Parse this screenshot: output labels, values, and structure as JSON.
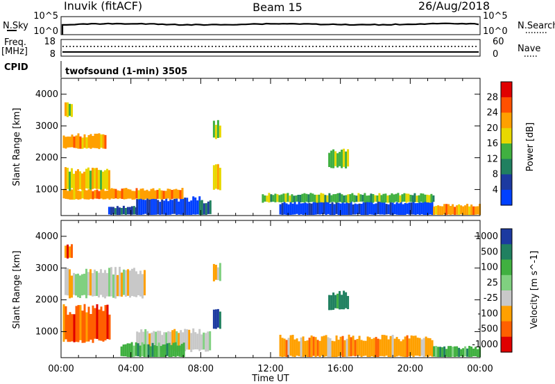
{
  "header": {
    "station": "Inuvik (fitACF)",
    "beam": "Beam 15",
    "date": "26/Aug/2018"
  },
  "top_panels": {
    "nsky_label": "N.Sky",
    "nsky_ticks": [
      "10^5",
      "10^0"
    ],
    "nsearch_label": "N.Search",
    "nsearch_ticks": [
      "10^5",
      "10^0"
    ],
    "freq_label_1": "Freq.",
    "freq_label_2": "[MHz]",
    "freq_ticks": [
      "18",
      "8"
    ],
    "nave_label": "Nave",
    "nave_ticks": [
      "60",
      "0"
    ],
    "cpid_label": "CPID",
    "cpid_text": "twofsound (1-min) 3505"
  },
  "chart_data": [
    {
      "type": "heatmap",
      "name": "power-panel",
      "xlabel": "Time UT",
      "ylabel": "Slant Range [km]",
      "xlim": [
        0,
        24
      ],
      "ylim": [
        180,
        4500
      ],
      "x_ticks": [
        "00:00",
        "04:00",
        "08:00",
        "12:00",
        "16:00",
        "20:00",
        "00:00"
      ],
      "y_ticks": [
        "1000",
        "2000",
        "3000",
        "4000"
      ],
      "colorbar": {
        "label": "Power [dB]",
        "ticks": [
          "28",
          "24",
          "20",
          "16",
          "12",
          "8",
          "4"
        ],
        "colors": [
          "#e00000",
          "#ff5000",
          "#ffa000",
          "#e8d800",
          "#40b040",
          "#208060",
          "#1c3aa0",
          "#0040ff"
        ]
      },
      "regions": [
        {
          "t0": 4.3,
          "t1": 7.9,
          "r0": 200,
          "r1": 700,
          "level": 7
        },
        {
          "t0": 2.7,
          "t1": 4.3,
          "r0": 200,
          "r1": 450,
          "level": 6
        },
        {
          "t0": 7.9,
          "t1": 8.5,
          "r0": 200,
          "r1": 600,
          "level": 5
        },
        {
          "t0": 0.1,
          "t1": 7.0,
          "r0": 700,
          "r1": 1000,
          "level": 2
        },
        {
          "t0": 0.2,
          "t1": 2.8,
          "r0": 1000,
          "r1": 1600,
          "level": 3
        },
        {
          "t0": 0.1,
          "t1": 2.6,
          "r0": 2300,
          "r1": 2700,
          "level": 2
        },
        {
          "t0": 8.7,
          "t1": 9.1,
          "r0": 2600,
          "r1": 3100,
          "level": 4
        },
        {
          "t0": 8.7,
          "t1": 9.1,
          "r0": 1000,
          "r1": 1700,
          "level": 3
        },
        {
          "t0": 12.5,
          "t1": 21.3,
          "r0": 200,
          "r1": 600,
          "level": 7
        },
        {
          "t0": 11.5,
          "t1": 21.3,
          "r0": 600,
          "r1": 850,
          "level": 4
        },
        {
          "t0": 15.3,
          "t1": 16.4,
          "r0": 1700,
          "r1": 2200,
          "level": 4
        },
        {
          "t0": 0.2,
          "t1": 0.6,
          "r0": 3300,
          "r1": 3700,
          "level": 3
        },
        {
          "t0": 21.3,
          "t1": 24.0,
          "r0": 200,
          "r1": 500,
          "level": 2
        }
      ]
    },
    {
      "type": "heatmap",
      "name": "velocity-panel",
      "xlabel": "Time UT",
      "ylabel": "Slant Range [km]",
      "xlim": [
        0,
        24
      ],
      "ylim": [
        180,
        4500
      ],
      "x_ticks": [
        "00:00",
        "04:00",
        "08:00",
        "12:00",
        "16:00",
        "20:00",
        "00:00"
      ],
      "y_ticks": [
        "1000",
        "2000",
        "3000",
        "4000"
      ],
      "colorbar": {
        "label": "Velocity [m s^-1]",
        "ticks": [
          "1000",
          "500",
          "100",
          "25",
          "-25",
          "-100",
          "-500",
          "-1000"
        ],
        "colors": [
          "#1c3aa0",
          "#208060",
          "#40b040",
          "#80d080",
          "#c8c8c8",
          "#ffa000",
          "#ff6000",
          "#e00000"
        ]
      },
      "regions": [
        {
          "t0": 0.1,
          "t1": 2.8,
          "r0": 700,
          "r1": 1700,
          "level": 6
        },
        {
          "t0": 0.2,
          "t1": 4.8,
          "r0": 2100,
          "r1": 2900,
          "level": 4
        },
        {
          "t0": 4.3,
          "t1": 8.5,
          "r0": 400,
          "r1": 1000,
          "level": 4
        },
        {
          "t0": 3.4,
          "t1": 7.0,
          "r0": 200,
          "r1": 600,
          "level": 2
        },
        {
          "t0": 8.7,
          "t1": 9.1,
          "r0": 2600,
          "r1": 3100,
          "level": 4
        },
        {
          "t0": 8.7,
          "t1": 9.1,
          "r0": 1100,
          "r1": 1700,
          "level": 0
        },
        {
          "t0": 12.5,
          "t1": 21.3,
          "r0": 200,
          "r1": 800,
          "level": 5
        },
        {
          "t0": 15.3,
          "t1": 16.4,
          "r0": 1700,
          "r1": 2200,
          "level": 1
        },
        {
          "t0": 0.2,
          "t1": 0.6,
          "r0": 3300,
          "r1": 3700,
          "level": 6
        },
        {
          "t0": 21.3,
          "t1": 24.0,
          "r0": 200,
          "r1": 500,
          "level": 2
        }
      ]
    }
  ]
}
